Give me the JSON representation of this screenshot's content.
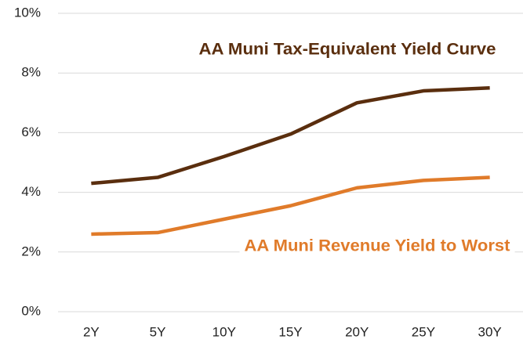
{
  "chart_data": {
    "type": "line",
    "categories": [
      "2Y",
      "5Y",
      "10Y",
      "15Y",
      "20Y",
      "25Y",
      "30Y"
    ],
    "series": [
      {
        "name": "AA Muni Tax-Equivalent Yield Curve",
        "color": "#5a2e0e",
        "values": [
          4.3,
          4.5,
          5.2,
          5.95,
          7.0,
          7.4,
          7.5
        ]
      },
      {
        "name": "AA Muni Revenue Yield to Worst",
        "color": "#e07b2a",
        "values": [
          2.6,
          2.65,
          3.1,
          3.55,
          4.15,
          4.4,
          4.5
        ]
      }
    ],
    "ylim": [
      0,
      10
    ],
    "yticks": [
      {
        "value": 0,
        "label": "0%"
      },
      {
        "value": 2,
        "label": "2%"
      },
      {
        "value": 4,
        "label": "4%"
      },
      {
        "value": 6,
        "label": "6%"
      },
      {
        "value": 8,
        "label": "8%"
      },
      {
        "value": 10,
        "label": "10%"
      }
    ],
    "grid": true
  }
}
